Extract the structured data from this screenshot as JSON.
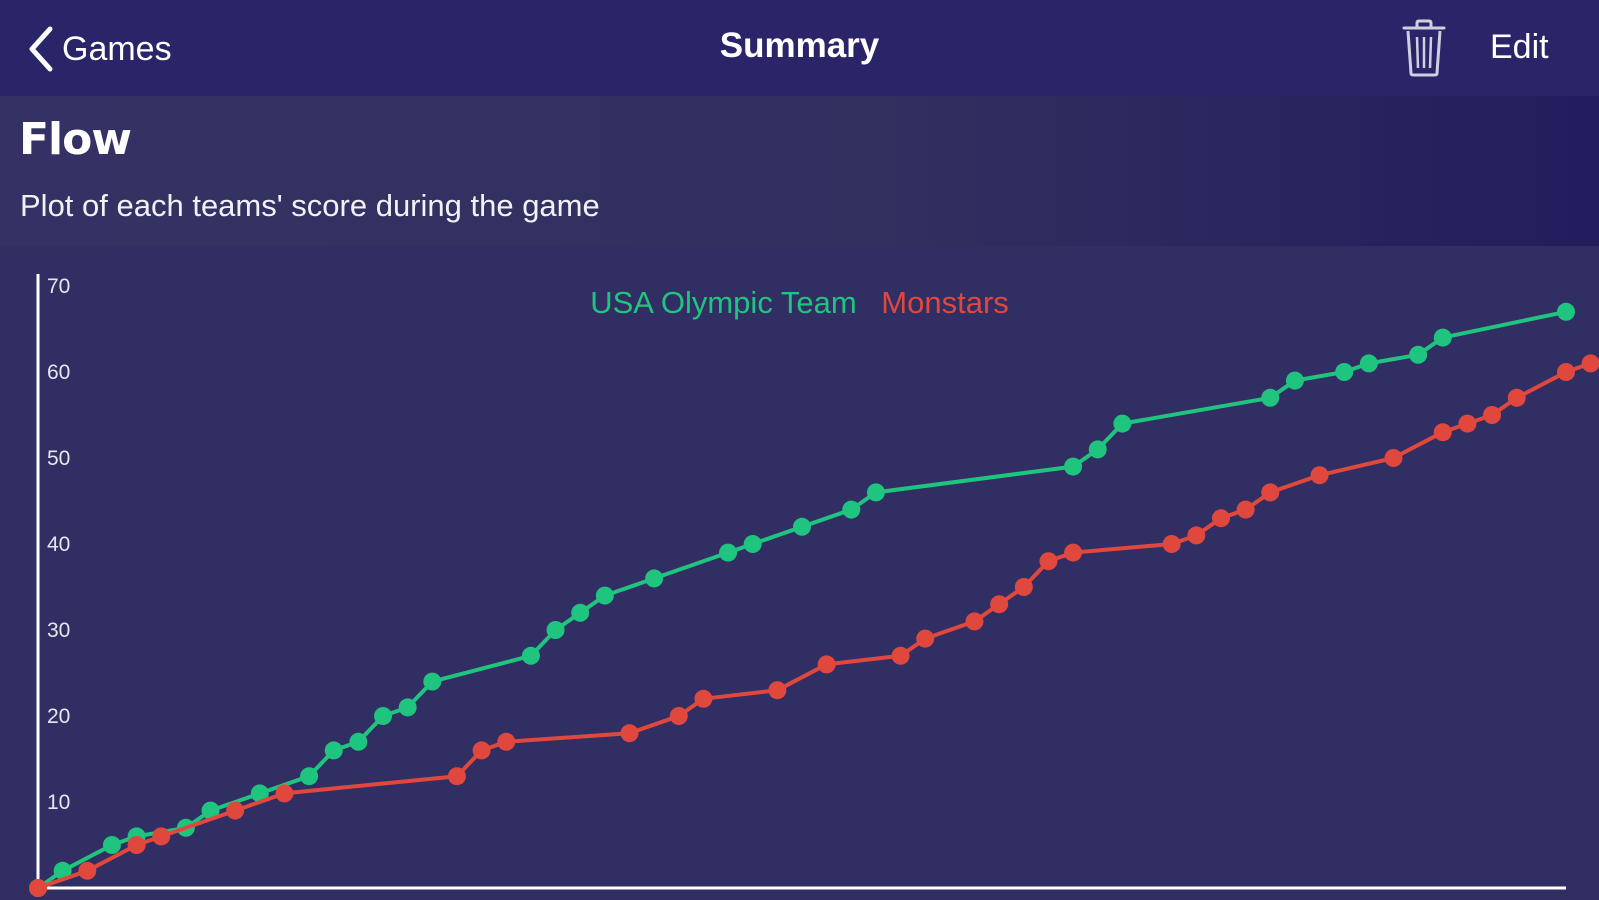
{
  "nav": {
    "back_label": "Games",
    "title": "Summary",
    "edit_label": "Edit"
  },
  "section": {
    "title": "Flow",
    "subtitle": "Plot of each teams' score during the game"
  },
  "colors": {
    "nav_bg": "#2a2568",
    "page_bg": "#302e62",
    "team1": "#1fc47e",
    "team2": "#e0483e"
  },
  "chart_data": {
    "type": "line",
    "title": "",
    "xlabel": "",
    "ylabel": "",
    "ylim": [
      0,
      70
    ],
    "yticks": [
      10,
      20,
      30,
      40,
      50,
      60,
      70
    ],
    "grid": false,
    "legend_position": "top-center",
    "series": [
      {
        "name": "USA Olympic Team",
        "color": "#1fc47e",
        "x": [
          0,
          1,
          3,
          4,
          6,
          7,
          9,
          11,
          12,
          13,
          14,
          15,
          16,
          20,
          21,
          22,
          23,
          25,
          28,
          29,
          31,
          33,
          34,
          42,
          43,
          44,
          50,
          51,
          53,
          54,
          56,
          57,
          62
        ],
        "values": [
          0,
          2,
          5,
          6,
          7,
          9,
          11,
          13,
          16,
          17,
          20,
          21,
          24,
          27,
          30,
          32,
          34,
          36,
          39,
          40,
          42,
          44,
          46,
          49,
          51,
          54,
          57,
          59,
          60,
          61,
          62,
          64,
          67
        ]
      },
      {
        "name": "Monstars",
        "color": "#e0483e",
        "x": [
          0,
          2,
          4,
          5,
          8,
          10,
          17,
          18,
          19,
          24,
          26,
          27,
          30,
          32,
          35,
          36,
          38,
          39,
          40,
          41,
          42,
          46,
          47,
          48,
          49,
          50,
          52,
          55,
          57,
          58,
          59,
          60,
          62,
          63
        ],
        "values": [
          0,
          2,
          5,
          6,
          9,
          11,
          13,
          16,
          17,
          18,
          20,
          22,
          23,
          26,
          27,
          29,
          31,
          33,
          35,
          38,
          39,
          40,
          41,
          43,
          44,
          46,
          48,
          50,
          53,
          54,
          55,
          57,
          60,
          61
        ]
      }
    ]
  }
}
